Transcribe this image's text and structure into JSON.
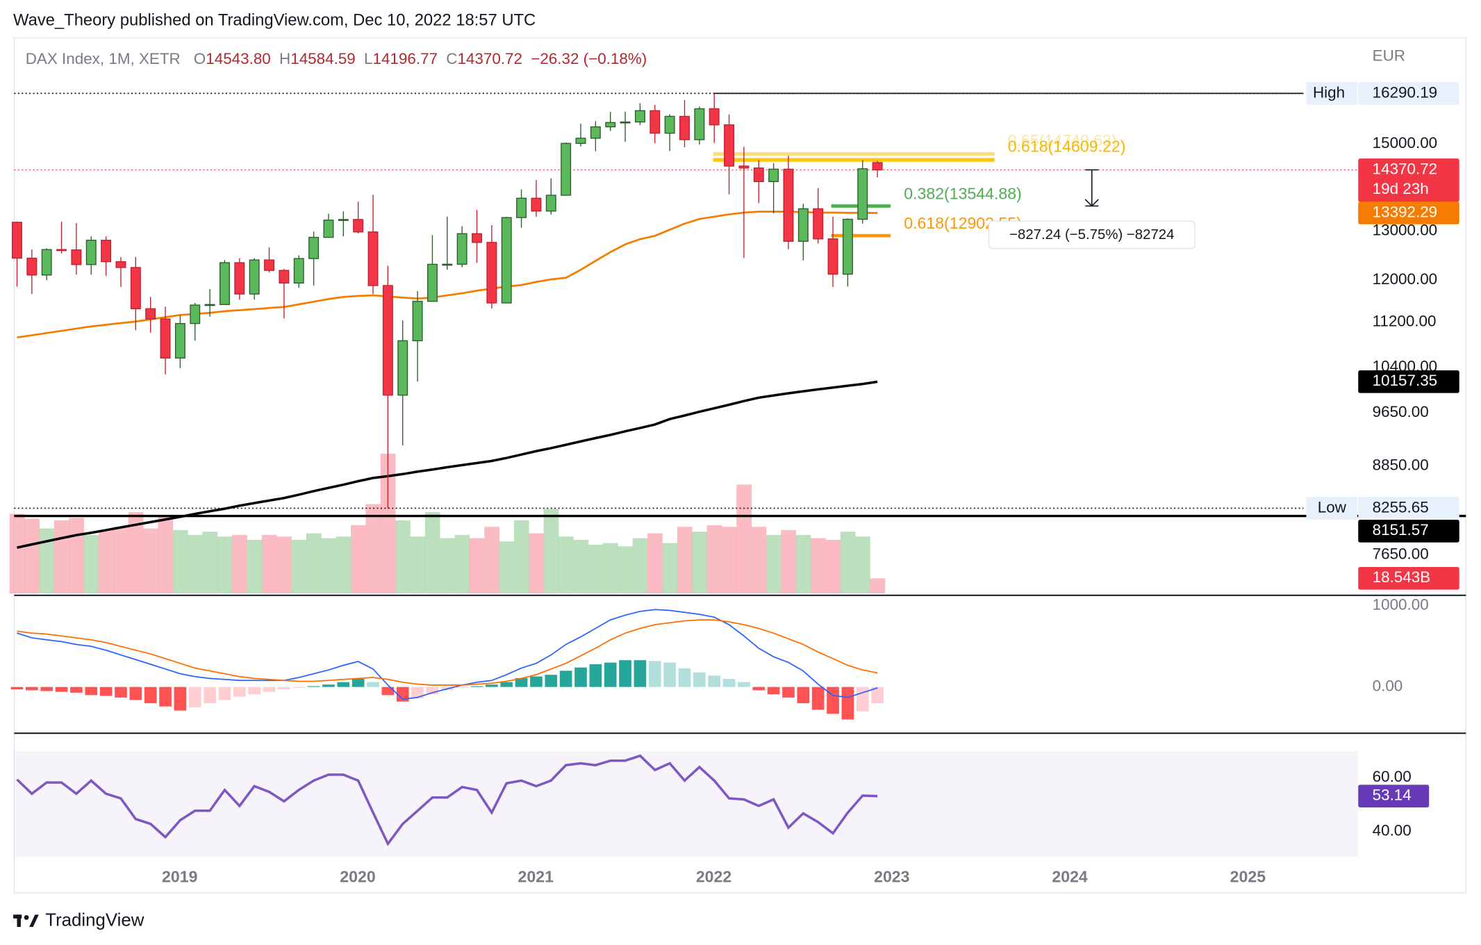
{
  "header": {
    "publisher": "Wave_Theory published on TradingView.com, Dec 10, 2022 18:57 UTC"
  },
  "footer": {
    "brand": "TradingView"
  },
  "chart_data": {
    "type": "candlestick",
    "symbol": "DAX Index, 1M, XETR",
    "legend": [
      {
        "key": "O",
        "value": "14543.80"
      },
      {
        "key": "H",
        "value": "14584.59"
      },
      {
        "key": "L",
        "value": "14196.77"
      },
      {
        "key": "C",
        "value": "14370.72"
      }
    ],
    "change": "−26.32 (−0.18%)",
    "currency": "EUR",
    "log_scale": true,
    "grid": false,
    "up_color": "#5cb85c",
    "down_color": "#f23645",
    "ylim": [
      7180,
      17840
    ],
    "yticks": [
      {
        "value": 15000,
        "label": "15000.00"
      },
      {
        "value": 13000,
        "label": "13000.00"
      },
      {
        "value": 12000,
        "label": "12000.00"
      },
      {
        "value": 11200,
        "label": "11200.00"
      },
      {
        "value": 10400,
        "label": "10400.00"
      },
      {
        "value": 9650,
        "label": "9650.00"
      },
      {
        "value": 8850,
        "label": "8850.00"
      },
      {
        "value": 7650,
        "label": "7650.00"
      }
    ],
    "xlim": [
      2018.07,
      2025.62
    ],
    "xticks": [
      2019,
      2020,
      2021,
      2022,
      2023,
      2024,
      2025
    ],
    "open": [
      13189,
      12436,
      12097,
      12612,
      12605,
      12306,
      12806,
      12364,
      12247,
      11447,
      11257,
      10559,
      11173,
      11516,
      11526,
      12344,
      11727,
      12399,
      12189,
      11939,
      12428,
      12867,
      13236,
      13249,
      12982,
      11890,
      9936,
      10862,
      11587,
      12311,
      12313,
      12945,
      12761,
      11556,
      13291,
      13719,
      13433,
      13786,
      15008,
      15136,
      15421,
      15531,
      15544,
      15835,
      15261,
      15688,
      15100,
      15885,
      15471,
      14461,
      14415,
      14098,
      14388,
      12784,
      13484,
      12835,
      12114,
      13254,
      14543.8
    ],
    "high": [
      13205,
      12614,
      12640,
      13204,
      13170,
      12888,
      12887,
      12458,
      12461,
      11671,
      11486,
      11325,
      11557,
      11823,
      12399,
      12435,
      12437,
      12656,
      12219,
      12494,
      12988,
      13374,
      13425,
      13640,
      13795,
      12281,
      11230,
      11781,
      12913,
      13314,
      13103,
      13460,
      13129,
      13307,
      13914,
      14132,
      14169,
      15030,
      15502,
      15568,
      15803,
      15811,
      16030,
      15989,
      15741,
      16114,
      15943,
      16290.19,
      15737,
      14926,
      14601,
      14526,
      14709,
      13596,
      13948,
      13311,
      13275,
      14597,
      14584.59
    ],
    "low": [
      11868,
      11727,
      11996,
      12533,
      12104,
      12104,
      12082,
      11865,
      11051,
      11009,
      10279,
      10387,
      10864,
      11299,
      11520,
      11620,
      11620,
      12145,
      11266,
      11846,
      11888,
      12858,
      12888,
      12948,
      11725,
      8255.65,
      9150,
      10160,
      11587,
      12201,
      12253,
      12341,
      11450,
      11556,
      13071,
      13310,
      13357,
      13786,
      14935,
      14817,
      15317,
      15047,
      15467,
      15009,
      14819,
      14913,
      14982,
      15020,
      13807,
      12439,
      13608,
      13381,
      12618,
      12391,
      12736,
      11863,
      11869,
      13159,
      14196.77
    ],
    "close": [
      12436,
      12097,
      12612,
      12605,
      12306,
      12806,
      12364,
      12247,
      11447,
      11257,
      10559,
      11173,
      11516,
      11526,
      12344,
      11727,
      12399,
      12189,
      11939,
      12428,
      12867,
      13236,
      13249,
      12982,
      11890,
      9936,
      10862,
      11587,
      12311,
      12313,
      12945,
      12761,
      11556,
      13291,
      13719,
      13433,
      13786,
      15008,
      15136,
      15421,
      15531,
      15544,
      15835,
      15261,
      15688,
      15100,
      15885,
      15471,
      14461,
      14415,
      14098,
      14388,
      12784,
      13484,
      12835,
      12114,
      13254,
      14397,
      14370.72
    ],
    "countdown": "19d 23h",
    "moving_averages": [
      {
        "color": "#f57c00",
        "values": [
          10922,
          10960,
          11000,
          11040,
          11080,
          11120,
          11150,
          11180,
          11210,
          11250,
          11290,
          11330,
          11350,
          11370,
          11400,
          11420,
          11440,
          11460,
          11480,
          11530,
          11580,
          11630,
          11670,
          11690,
          11700,
          11680,
          11660,
          11640,
          11660,
          11700,
          11740,
          11790,
          11830,
          11870,
          11900,
          11960,
          12010,
          12042,
          12200,
          12380,
          12560,
          12720,
          12830,
          12900,
          13030,
          13160,
          13260,
          13310,
          13360,
          13400,
          13420,
          13420,
          13420,
          13410,
          13400,
          13400,
          13395,
          13393,
          13392.29
        ]
      },
      {
        "color": "#000000",
        "values": [
          7740,
          7780,
          7820,
          7860,
          7900,
          7930,
          7965,
          8000,
          8035,
          8070,
          8105,
          8140,
          8180,
          8215,
          8250,
          8290,
          8325,
          8360,
          8395,
          8440,
          8490,
          8535,
          8580,
          8630,
          8675,
          8700,
          8730,
          8765,
          8795,
          8830,
          8860,
          8890,
          8920,
          8965,
          9015,
          9065,
          9110,
          9160,
          9210,
          9260,
          9310,
          9365,
          9415,
          9470,
          9555,
          9610,
          9670,
          9725,
          9780,
          9840,
          9895,
          9930,
          9965,
          10000,
          10030,
          10060,
          10090,
          10120,
          10157.35
        ]
      }
    ],
    "high_level": {
      "label": "High",
      "value": 16290.19
    },
    "low_level": {
      "label": "Low",
      "value": 8255.65
    },
    "support_line": {
      "value": 8151.57,
      "color": "#000000"
    },
    "fibs": [
      {
        "label": "0.65(14749.63)",
        "value": 14749.63,
        "color": "#f9c80e",
        "faded": true
      },
      {
        "label": "0.618(14609.22)",
        "value": 14609.22,
        "color": "#f9c80e",
        "faded": false
      },
      {
        "label": "0.382(13544.88)",
        "value": 13544.88,
        "color": "#4caf50",
        "faded": false
      },
      {
        "label": "0.618(12902.55)",
        "value": 12902.55,
        "color": "#ff9800",
        "faded": false
      }
    ],
    "measure": {
      "label": "−827.24 (−5.75%) −82724",
      "from": 14372.12,
      "to": 13544.88
    },
    "volume": {
      "up_color": "#a5d6a7",
      "down_color": "#f8a5ae",
      "last_label": "18.543B",
      "values": [
        98,
        92,
        80,
        90,
        93,
        72,
        78,
        82,
        100,
        80,
        96,
        78,
        72,
        76,
        70,
        72,
        66,
        72,
        70,
        66,
        74,
        68,
        70,
        84,
        110,
        172,
        90,
        70,
        100,
        68,
        72,
        68,
        82,
        64,
        90,
        74,
        104,
        70,
        66,
        60,
        62,
        58,
        68,
        74,
        62,
        82,
        76,
        84,
        82,
        134,
        82,
        72,
        78,
        72,
        68,
        66,
        76,
        70,
        18.543
      ]
    },
    "macd": {
      "ylim": [
        -558,
        1105
      ],
      "yticks": [
        {
          "value": 1000,
          "label": "1000.00"
        },
        {
          "value": 0,
          "label": "0.00"
        }
      ],
      "macd_color": "#2962ff",
      "signal_color": "#ff6d00",
      "hist_colors": [
        "#26a69a",
        "#b2dfdb",
        "#ff5252",
        "#ffcdd2"
      ],
      "macd": [
        663,
        605,
        581,
        558,
        523,
        500,
        453,
        395,
        337,
        279,
        221,
        163,
        128,
        105,
        93,
        81,
        81,
        81,
        81,
        116,
        163,
        209,
        267,
        314,
        221,
        23,
        -151,
        -128,
        -70,
        -23,
        23,
        58,
        81,
        151,
        233,
        291,
        395,
        523,
        616,
        721,
        826,
        884,
        930,
        953,
        942,
        919,
        895,
        860,
        767,
        628,
        477,
        372,
        302,
        198,
        35,
        -105,
        -128,
        -70,
        -12
      ],
      "signal": [
        686,
        663,
        651,
        628,
        605,
        581,
        547,
        500,
        453,
        407,
        349,
        291,
        233,
        198,
        163,
        128,
        105,
        93,
        81,
        70,
        70,
        81,
        93,
        105,
        116,
        93,
        58,
        35,
        23,
        23,
        23,
        35,
        47,
        70,
        105,
        151,
        221,
        291,
        384,
        477,
        581,
        663,
        721,
        767,
        791,
        814,
        826,
        826,
        802,
        767,
        721,
        663,
        593,
        523,
        430,
        349,
        267,
        209,
        174
      ],
      "histogram": [
        -30,
        -40,
        -50,
        -60,
        -70,
        -100,
        -110,
        -130,
        -160,
        -200,
        -240,
        -290,
        -250,
        -200,
        -160,
        -120,
        -90,
        -60,
        -30,
        -10,
        10,
        30,
        60,
        100,
        60,
        -100,
        -180,
        -140,
        -90,
        -40,
        -10,
        10,
        30,
        60,
        110,
        130,
        150,
        200,
        240,
        280,
        300,
        330,
        330,
        320,
        300,
        230,
        180,
        140,
        100,
        60,
        -40,
        -90,
        -130,
        -200,
        -280,
        -330,
        -400,
        -300,
        -200
      ]
    },
    "rsi": {
      "ylim": [
        30.5,
        69.8
      ],
      "yticks": [
        {
          "value": 60,
          "label": "60.00"
        },
        {
          "value": 40,
          "label": "40.00"
        }
      ],
      "color": "#7e57c2",
      "values": [
        59.3,
        54.0,
        58.2,
        58.2,
        54.0,
        58.9,
        54.0,
        52.3,
        44.6,
        42.8,
        37.9,
        44.2,
        47.7,
        47.7,
        55.4,
        49.5,
        56.8,
        54.7,
        51.2,
        55.4,
        58.9,
        61.1,
        61.1,
        58.9,
        47.0,
        35.4,
        42.8,
        47.7,
        52.6,
        52.6,
        56.5,
        55.4,
        47.0,
        57.9,
        58.9,
        56.8,
        58.9,
        64.6,
        65.3,
        64.6,
        66.3,
        66.3,
        68.1,
        62.8,
        65.3,
        58.9,
        63.9,
        58.9,
        52.3,
        51.9,
        49.5,
        51.9,
        41.4,
        46.7,
        43.5,
        39.3,
        47.0,
        53.3,
        53.14
      ]
    }
  }
}
